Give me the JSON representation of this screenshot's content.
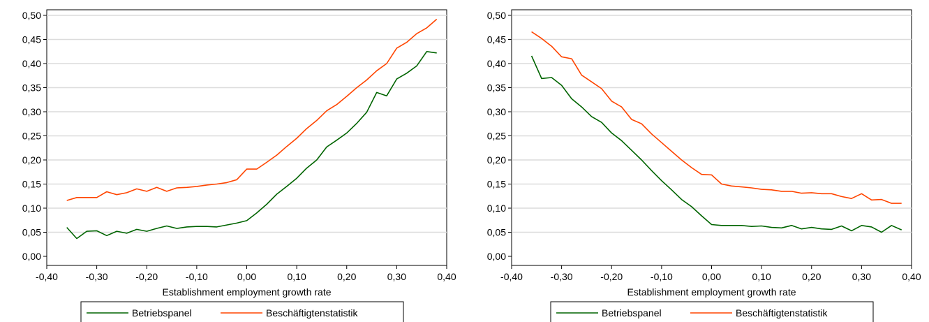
{
  "colors": {
    "betriebspanel": "#006400",
    "beschaeftigtenstatistik": "#ff4500",
    "grid": "#dcdcdc"
  },
  "chart_data": [
    {
      "type": "line",
      "xlabel": "Establishment employment growth rate",
      "ylabel": "",
      "xlim": [
        -0.4,
        0.4
      ],
      "ylim": [
        0,
        0.5
      ],
      "xticks": [
        "-0,40",
        "-0,30",
        "-0,20",
        "-0,10",
        "0,00",
        "0,10",
        "0,20",
        "0,30",
        "0,40"
      ],
      "yticks": [
        "0,00",
        "0,05",
        "0,10",
        "0,15",
        "0,20",
        "0,25",
        "0,30",
        "0,35",
        "0,40",
        "0,45",
        "0,50"
      ],
      "grid": true,
      "legend": "bottom",
      "x": [
        -0.36,
        -0.34,
        -0.32,
        -0.3,
        -0.28,
        -0.26,
        -0.24,
        -0.22,
        -0.2,
        -0.18,
        -0.16,
        -0.14,
        -0.12,
        -0.1,
        -0.08,
        -0.06,
        -0.04,
        -0.02,
        0.0,
        0.02,
        0.04,
        0.06,
        0.08,
        0.1,
        0.12,
        0.14,
        0.16,
        0.18,
        0.2,
        0.22,
        0.24,
        0.26,
        0.28,
        0.3,
        0.32,
        0.34,
        0.36,
        0.38
      ],
      "series": [
        {
          "name": "Betriebspanel",
          "color": "#006400",
          "values": [
            0.06,
            0.037,
            0.052,
            0.053,
            0.043,
            0.052,
            0.048,
            0.056,
            0.052,
            0.058,
            0.063,
            0.058,
            0.061,
            0.062,
            0.062,
            0.061,
            0.065,
            0.069,
            0.074,
            0.09,
            0.108,
            0.129,
            0.145,
            0.162,
            0.183,
            0.2,
            0.227,
            0.241,
            0.256,
            0.276,
            0.299,
            0.34,
            0.333,
            0.368,
            0.38,
            0.395,
            0.425,
            0.422
          ]
        },
        {
          "name": "Beschäftigtenstatistik",
          "color": "#ff4500",
          "values": [
            0.116,
            0.122,
            0.122,
            0.122,
            0.134,
            0.128,
            0.132,
            0.14,
            0.135,
            0.143,
            0.135,
            0.142,
            0.143,
            0.145,
            0.148,
            0.15,
            0.153,
            0.159,
            0.181,
            0.181,
            0.195,
            0.21,
            0.228,
            0.245,
            0.265,
            0.282,
            0.302,
            0.315,
            0.332,
            0.35,
            0.366,
            0.385,
            0.4,
            0.432,
            0.444,
            0.462,
            0.474,
            0.492
          ]
        }
      ]
    },
    {
      "type": "line",
      "xlabel": "Establishment employment growth rate",
      "ylabel": "",
      "xlim": [
        -0.4,
        0.4
      ],
      "ylim": [
        0,
        0.5
      ],
      "xticks": [
        "-0,40",
        "-0,30",
        "-0,20",
        "-0,10",
        "0,00",
        "0,10",
        "0,20",
        "0,30",
        "0,40"
      ],
      "yticks": [
        "0,00",
        "0,05",
        "0,10",
        "0,15",
        "0,20",
        "0,25",
        "0,30",
        "0,35",
        "0,40",
        "0,45",
        "0,50"
      ],
      "grid": true,
      "legend": "bottom",
      "x": [
        -0.36,
        -0.34,
        -0.32,
        -0.3,
        -0.28,
        -0.26,
        -0.24,
        -0.22,
        -0.2,
        -0.18,
        -0.16,
        -0.14,
        -0.12,
        -0.1,
        -0.08,
        -0.06,
        -0.04,
        -0.02,
        0.0,
        0.02,
        0.04,
        0.06,
        0.08,
        0.1,
        0.12,
        0.14,
        0.16,
        0.18,
        0.2,
        0.22,
        0.24,
        0.26,
        0.28,
        0.3,
        0.32,
        0.34,
        0.36,
        0.38
      ],
      "series": [
        {
          "name": "Betriebspanel",
          "color": "#006400",
          "values": [
            0.416,
            0.369,
            0.371,
            0.355,
            0.327,
            0.31,
            0.29,
            0.278,
            0.256,
            0.24,
            0.22,
            0.2,
            0.178,
            0.157,
            0.138,
            0.118,
            0.103,
            0.084,
            0.066,
            0.064,
            0.064,
            0.064,
            0.062,
            0.063,
            0.06,
            0.059,
            0.064,
            0.057,
            0.06,
            0.057,
            0.056,
            0.063,
            0.053,
            0.064,
            0.061,
            0.05,
            0.064,
            0.055
          ]
        },
        {
          "name": "Beschäftigtenstatistik",
          "color": "#ff4500",
          "values": [
            0.466,
            0.452,
            0.436,
            0.414,
            0.41,
            0.376,
            0.362,
            0.348,
            0.322,
            0.31,
            0.284,
            0.275,
            0.254,
            0.236,
            0.218,
            0.2,
            0.184,
            0.17,
            0.169,
            0.15,
            0.146,
            0.144,
            0.142,
            0.139,
            0.138,
            0.135,
            0.135,
            0.131,
            0.132,
            0.13,
            0.13,
            0.124,
            0.12,
            0.13,
            0.117,
            0.118,
            0.11,
            0.11
          ]
        }
      ]
    }
  ]
}
